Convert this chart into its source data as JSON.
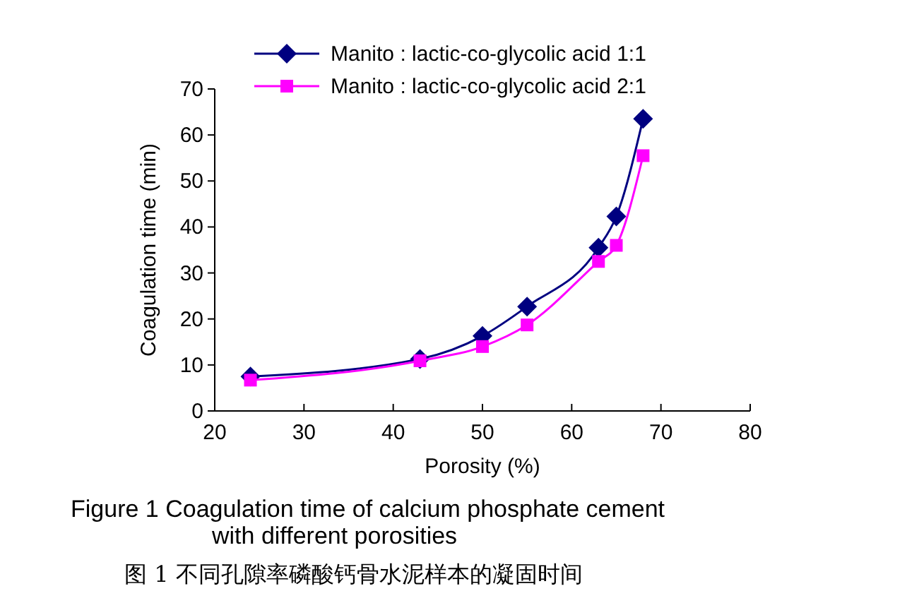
{
  "chart_data": {
    "type": "line",
    "xlabel": "Porosity (%)",
    "ylabel": "Coagulation time (min)",
    "xlim": [
      20,
      80
    ],
    "xticks": [
      20,
      30,
      40,
      50,
      60,
      70,
      80
    ],
    "ylim": [
      0,
      70
    ],
    "yticks": [
      0,
      10,
      20,
      30,
      40,
      50,
      60,
      70
    ],
    "grid": false,
    "legend": "top",
    "series": [
      {
        "name": "Manito : lactic-co-glycolic acid 1:1",
        "color": "#000080",
        "marker": "diamond",
        "x": [
          24,
          43,
          50,
          55,
          63,
          65,
          68
        ],
        "values": [
          7.5,
          11.3,
          16.3,
          22.7,
          35.5,
          42.3,
          63.5
        ]
      },
      {
        "name": "Manito : lactic-co-glycolic acid 2:1",
        "color": "#ff00ff",
        "marker": "square",
        "x": [
          24,
          43,
          50,
          55,
          63,
          65,
          68
        ],
        "values": [
          6.7,
          10.9,
          14,
          18.7,
          32.5,
          36,
          55.5
        ]
      }
    ],
    "annotations": [
      "Figure 1    Coagulation time of calcium phosphate cement with different porosities",
      "图 1    不同孔隙率磷酸钙骨水泥样本的凝固时间"
    ]
  }
}
